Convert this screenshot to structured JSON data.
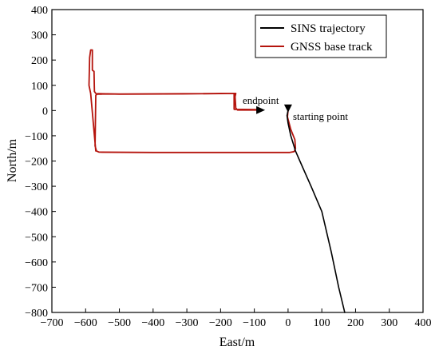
{
  "chart_data": {
    "type": "line",
    "title": "",
    "xlabel": "East/m",
    "ylabel": "North/m",
    "xlim": [
      -700,
      400
    ],
    "ylim": [
      -800,
      400
    ],
    "xticks": [
      -700,
      -600,
      -500,
      -400,
      -300,
      -200,
      -100,
      0,
      100,
      200,
      300,
      400
    ],
    "yticks": [
      -800,
      -700,
      -600,
      -500,
      -400,
      -300,
      -200,
      -100,
      0,
      100,
      200,
      300,
      400
    ],
    "xtick_labels": [
      "−700",
      "−600",
      "−500",
      "−400",
      "−300",
      "−200",
      "−100",
      "0",
      "100",
      "200",
      "300",
      "400"
    ],
    "ytick_labels": [
      "−800",
      "−700",
      "−600",
      "−500",
      "−400",
      "−300",
      "−200",
      "−100",
      "0",
      "100",
      "200",
      "300",
      "400"
    ],
    "legend_position": "top-right",
    "series": [
      {
        "name": "SINS trajectory",
        "color": "#000000",
        "points": [
          [
            168,
            -800
          ],
          [
            150,
            -700
          ],
          [
            128,
            -560
          ],
          [
            100,
            -400
          ],
          [
            68,
            -300
          ],
          [
            35,
            -200
          ],
          [
            22,
            -160
          ],
          [
            8,
            -100
          ],
          [
            0,
            -50
          ],
          [
            -3,
            -20
          ],
          [
            0,
            0
          ]
        ]
      },
      {
        "name": "GNSS base track",
        "color": "#b5140d",
        "points": [
          [
            0,
            0
          ],
          [
            -2,
            -25
          ],
          [
            8,
            -75
          ],
          [
            20,
            -115
          ],
          [
            22,
            -150
          ],
          [
            18,
            -163
          ],
          [
            5,
            -166
          ],
          [
            -400,
            -166
          ],
          [
            -560,
            -165
          ],
          [
            -568,
            -160
          ],
          [
            -572,
            -140
          ],
          [
            -570,
            60
          ],
          [
            -565,
            67
          ],
          [
            -500,
            65
          ],
          [
            -300,
            66
          ],
          [
            -155,
            68
          ],
          [
            -157,
            55
          ],
          [
            -155,
            10
          ],
          [
            -150,
            2
          ],
          [
            -80,
            2
          ],
          [
            -90,
            4
          ],
          [
            -160,
            5
          ],
          [
            -160,
            68
          ],
          [
            -568,
            65
          ],
          [
            -574,
            75
          ],
          [
            -575,
            155
          ],
          [
            -580,
            160
          ],
          [
            -580,
            240
          ],
          [
            -585,
            240
          ],
          [
            -588,
            210
          ],
          [
            -590,
            100
          ],
          [
            -585,
            68
          ],
          [
            -570,
            -160
          ]
        ]
      }
    ],
    "annotations": [
      {
        "text": "endpoint",
        "x": -100,
        "y": 28
      },
      {
        "text": "starting point",
        "x": 15,
        "y": -22
      }
    ],
    "markers": [
      {
        "name": "endpoint-arrow",
        "shape": "triangle-right",
        "x": -80,
        "y": 2
      },
      {
        "name": "starting-point-marker",
        "shape": "triangle-down",
        "x": 0,
        "y": 5
      }
    ]
  }
}
